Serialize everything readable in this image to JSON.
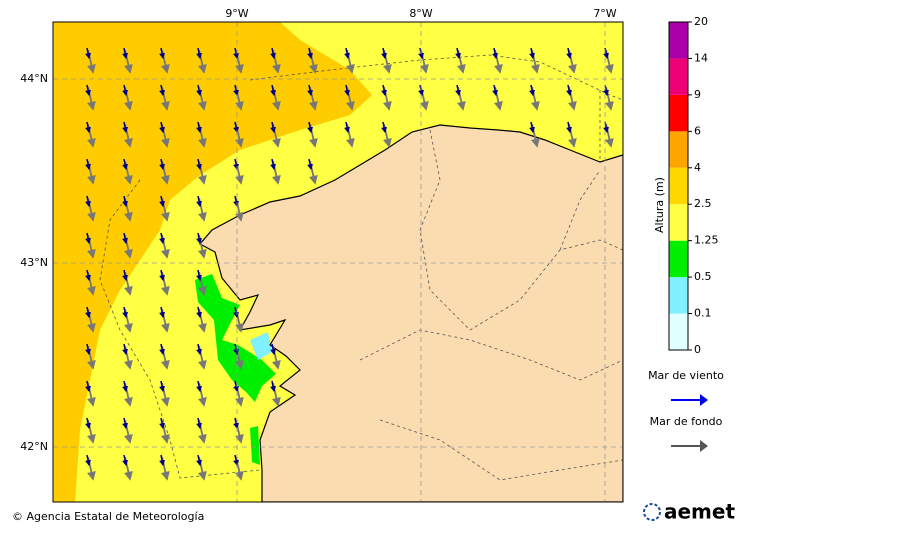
{
  "map": {
    "lon_ticks": [
      {
        "value": -9,
        "label": "9°W"
      },
      {
        "value": -8,
        "label": "8°W"
      },
      {
        "value": -7,
        "label": "7°W"
      }
    ],
    "lat_ticks": [
      {
        "value": 44,
        "label": "44°N"
      },
      {
        "value": 43,
        "label": "43°N"
      },
      {
        "value": 42,
        "label": "42°N"
      }
    ]
  },
  "colorbar": {
    "title": "Altura (m)",
    "levels": [
      0,
      0.1,
      0.5,
      1.25,
      2.5,
      4,
      6,
      9,
      14,
      20
    ],
    "colors": [
      "#e0ffff",
      "#80f0ff",
      "#00ee00",
      "#ffff44",
      "#ffd700",
      "#ffa500",
      "#ff0000",
      "#ee0077",
      "#aa00aa"
    ]
  },
  "legend": {
    "items": [
      {
        "label": "Mar de viento",
        "color": "#0000ee"
      },
      {
        "label": "Mar de fondo",
        "color": "#555555"
      }
    ]
  },
  "footer": {
    "credit": "© Agencia Estatal de Meteorología",
    "logo": "aemet"
  }
}
